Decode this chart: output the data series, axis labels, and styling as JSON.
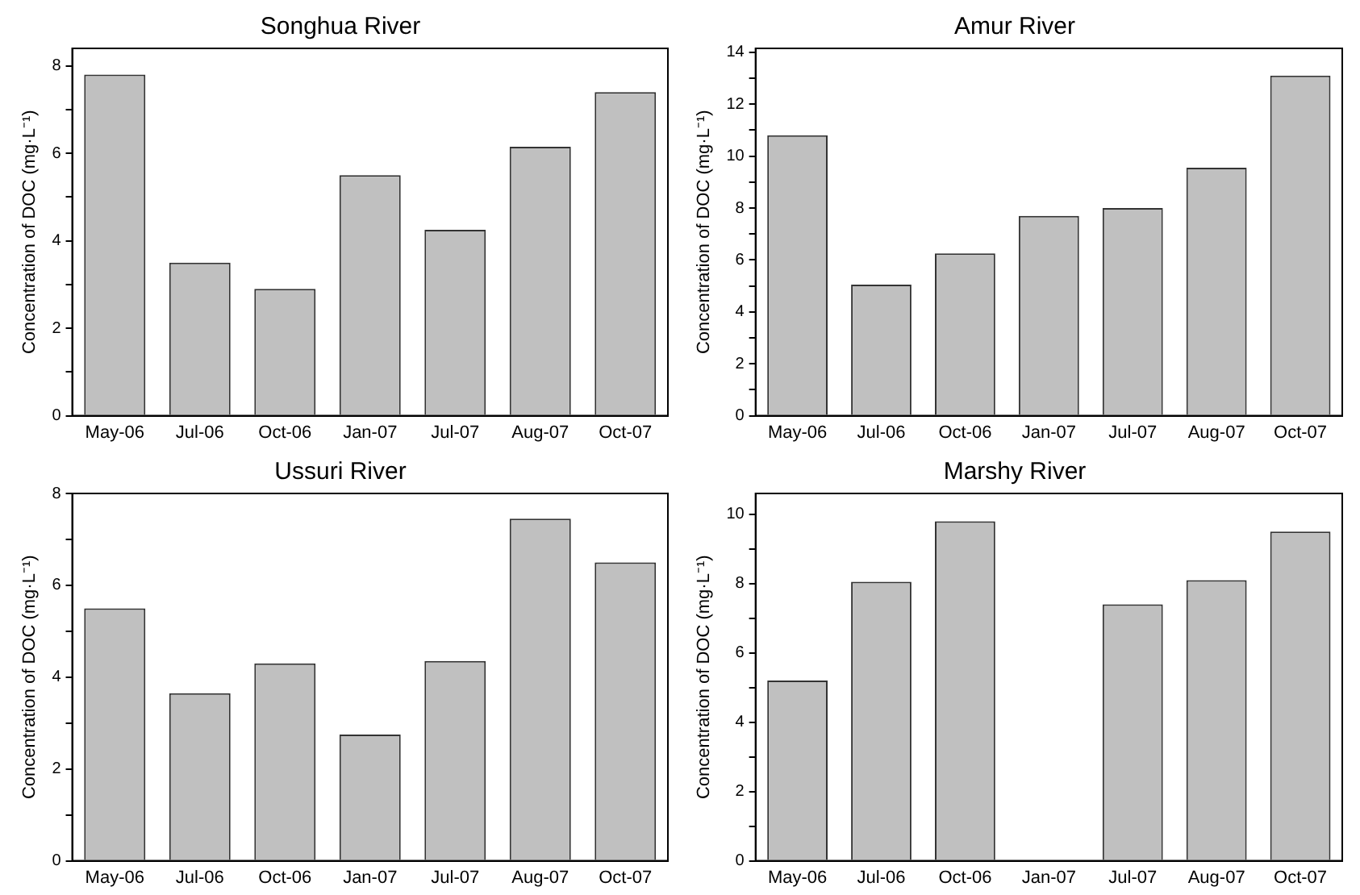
{
  "chart_data": [
    {
      "type": "bar",
      "title": "Songhua River",
      "ylabel": "Concentration of DOC (mg·L⁻¹)",
      "categories": [
        "May-06",
        "Jul-06",
        "Oct-06",
        "Jan-07",
        "Jul-07",
        "Aug-07",
        "Oct-07"
      ],
      "values": [
        7.8,
        3.5,
        2.9,
        5.5,
        4.25,
        6.15,
        7.4
      ],
      "color": "#c0c0c0",
      "ylim": [
        0,
        8.4
      ],
      "yticks": [
        0,
        {
          "value": 1,
          "label": null
        },
        2,
        {
          "value": 3,
          "label": null
        },
        4,
        {
          "value": 5,
          "label": null
        },
        6,
        {
          "value": 7,
          "label": null
        },
        8
      ],
      "grid": false,
      "legend": false
    },
    {
      "type": "bar",
      "title": "Amur River",
      "ylabel": "Concentration of DOC (mg·L⁻¹)",
      "categories": [
        "May-06",
        "Jul-06",
        "Oct-06",
        "Jan-07",
        "Jul-07",
        "Aug-07",
        "Oct-07"
      ],
      "values": [
        10.8,
        5.05,
        6.25,
        7.7,
        8.0,
        9.55,
        13.1
      ],
      "color": "#c0c0c0",
      "ylim": [
        0,
        14.15
      ],
      "yticks": [
        0,
        {
          "value": 1,
          "label": null
        },
        2,
        {
          "value": 3,
          "label": null
        },
        4,
        {
          "value": 5,
          "label": null
        },
        6,
        {
          "value": 7,
          "label": null
        },
        8,
        {
          "value": 9,
          "label": null
        },
        10,
        {
          "value": 11,
          "label": null
        },
        12,
        {
          "value": 13,
          "label": null
        },
        14
      ],
      "grid": false,
      "legend": false
    },
    {
      "type": "bar",
      "title": "Ussuri River",
      "ylabel": "Concentration of DOC (mg·L⁻¹)",
      "categories": [
        "May-06",
        "Jul-06",
        "Oct-06",
        "Jan-07",
        "Jul-07",
        "Aug-07",
        "Oct-07"
      ],
      "values": [
        5.5,
        3.65,
        4.3,
        2.75,
        4.35,
        7.45,
        6.5
      ],
      "color": "#c0c0c0",
      "ylim": [
        0,
        8
      ],
      "yticks": [
        0,
        {
          "value": 1,
          "label": null
        },
        2,
        {
          "value": 3,
          "label": null
        },
        4,
        {
          "value": 5,
          "label": null
        },
        6,
        {
          "value": 7,
          "label": null
        },
        8
      ],
      "grid": false,
      "legend": false
    },
    {
      "type": "bar",
      "title": "Marshy River",
      "ylabel": "Concentration of DOC (mg·L⁻¹)",
      "categories": [
        "May-06",
        "Jul-06",
        "Oct-06",
        "Jan-07",
        "Jul-07",
        "Aug-07",
        "Oct-07"
      ],
      "values": [
        5.2,
        8.05,
        9.8,
        null,
        7.4,
        8.1,
        9.5
      ],
      "color": "#c0c0c0",
      "ylim": [
        0,
        10.6
      ],
      "yticks": [
        0,
        {
          "value": 1,
          "label": null
        },
        2,
        {
          "value": 3,
          "label": null
        },
        4,
        {
          "value": 5,
          "label": null
        },
        6,
        {
          "value": 7,
          "label": null
        },
        8,
        {
          "value": 9,
          "label": null
        },
        10
      ],
      "grid": false,
      "legend": false
    }
  ]
}
